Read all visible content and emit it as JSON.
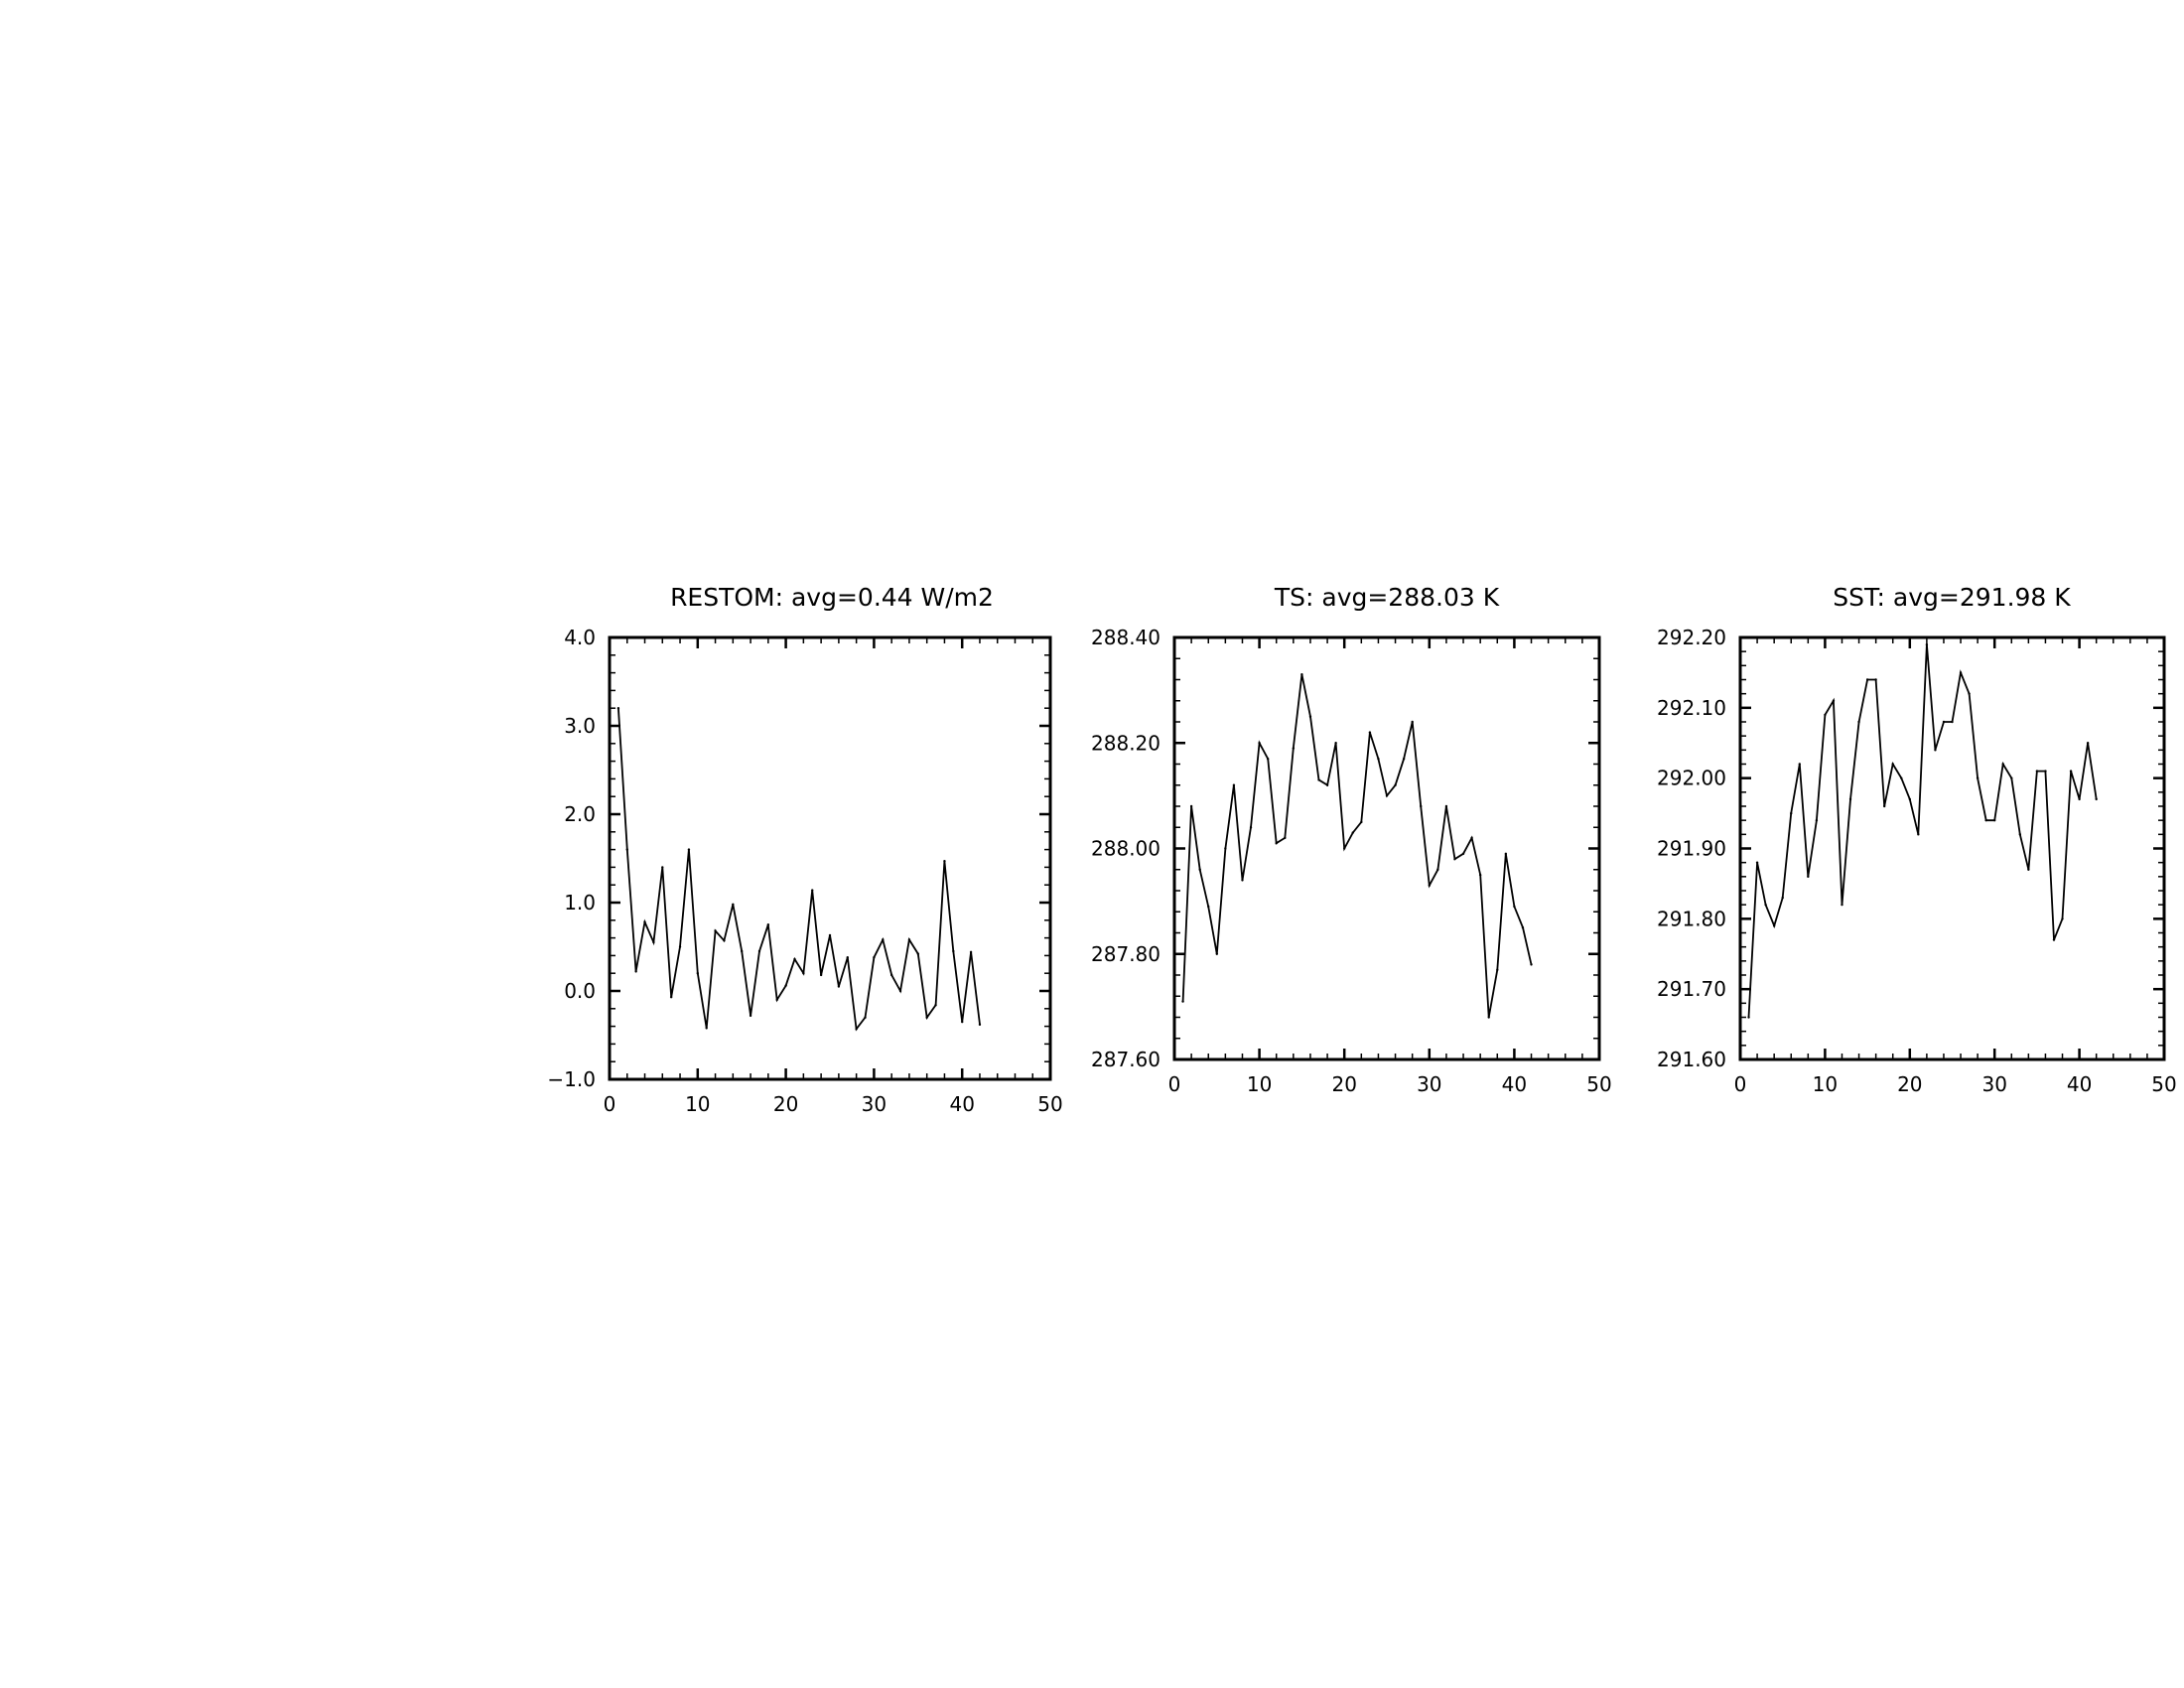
{
  "chart_data": [
    {
      "type": "line",
      "title": "RESTOM: avg=0.44 W/m2",
      "xlabel": "",
      "ylabel": "",
      "xlim": [
        0,
        50
      ],
      "ylim": [
        -1.0,
        4.0
      ],
      "xticks": [
        0,
        10,
        20,
        30,
        40,
        50
      ],
      "xtick_labels": [
        "0",
        "10",
        "20",
        "30",
        "40",
        "50"
      ],
      "yticks": [
        -1.0,
        0.0,
        1.0,
        2.0,
        3.0,
        4.0
      ],
      "ytick_labels": [
        "−1.0",
        "0.0",
        "1.0",
        "2.0",
        "3.0",
        "4.0"
      ],
      "grid": false,
      "x": [
        1,
        2,
        3,
        4,
        5,
        6,
        7,
        8,
        9,
        10,
        11,
        12,
        13,
        14,
        15,
        16,
        17,
        18,
        19,
        20,
        21,
        22,
        23,
        24,
        25,
        26,
        27,
        28,
        29,
        30,
        31,
        32,
        33,
        34,
        35,
        36,
        37,
        38,
        39,
        40,
        41,
        42
      ],
      "series": [
        {
          "color": "#000000",
          "values": [
            3.2,
            1.6,
            0.22,
            0.78,
            0.55,
            1.4,
            -0.07,
            0.5,
            1.6,
            0.2,
            -0.42,
            0.68,
            0.57,
            0.98,
            0.45,
            -0.28,
            0.45,
            0.75,
            -0.1,
            0.06,
            0.36,
            0.2,
            1.14,
            0.18,
            0.63,
            0.05,
            0.38,
            -0.43,
            -0.3,
            0.38,
            0.58,
            0.18,
            0.0,
            0.58,
            0.42,
            -0.3,
            -0.16,
            1.47,
            0.45,
            -0.35,
            0.44,
            -0.38
          ]
        }
      ]
    },
    {
      "type": "line",
      "title": "TS: avg=288.03 K",
      "xlabel": "",
      "ylabel": "",
      "xlim": [
        0,
        50
      ],
      "ylim": [
        287.6,
        288.4
      ],
      "xticks": [
        0,
        10,
        20,
        30,
        40,
        50
      ],
      "xtick_labels": [
        "0",
        "10",
        "20",
        "30",
        "40",
        "50"
      ],
      "yticks": [
        287.6,
        287.8,
        288.0,
        288.2,
        288.4
      ],
      "ytick_labels": [
        "287.60",
        "287.80",
        "288.00",
        "288.20",
        "288.40"
      ],
      "grid": false,
      "x": [
        1,
        2,
        3,
        4,
        5,
        6,
        7,
        8,
        9,
        10,
        11,
        12,
        13,
        14,
        15,
        16,
        17,
        18,
        19,
        20,
        21,
        22,
        23,
        24,
        25,
        26,
        27,
        28,
        29,
        30,
        31,
        32,
        33,
        34,
        35,
        36,
        37,
        38,
        39,
        40,
        41,
        42
      ],
      "series": [
        {
          "color": "#000000",
          "values": [
            287.71,
            288.08,
            287.96,
            287.89,
            287.8,
            288.0,
            288.12,
            287.94,
            288.04,
            288.2,
            288.17,
            288.01,
            288.02,
            288.19,
            288.33,
            288.25,
            288.13,
            288.12,
            288.2,
            288.0,
            288.03,
            288.05,
            288.22,
            288.17,
            288.1,
            288.12,
            288.17,
            288.24,
            288.08,
            287.93,
            287.96,
            288.08,
            287.98,
            287.99,
            288.02,
            287.95,
            287.68,
            287.77,
            287.99,
            287.89,
            287.85,
            287.78
          ]
        }
      ]
    },
    {
      "type": "line",
      "title": "SST: avg=291.98 K",
      "xlabel": "",
      "ylabel": "",
      "xlim": [
        0,
        50
      ],
      "ylim": [
        291.6,
        292.2
      ],
      "xticks": [
        0,
        10,
        20,
        30,
        40,
        50
      ],
      "xtick_labels": [
        "0",
        "10",
        "20",
        "30",
        "40",
        "50"
      ],
      "yticks": [
        291.6,
        291.7,
        291.8,
        291.9,
        292.0,
        292.1,
        292.2
      ],
      "ytick_labels": [
        "291.60",
        "291.70",
        "291.80",
        "291.90",
        "292.00",
        "292.10",
        "292.20"
      ],
      "grid": false,
      "x": [
        1,
        2,
        3,
        4,
        5,
        6,
        7,
        8,
        9,
        10,
        11,
        12,
        13,
        14,
        15,
        16,
        17,
        18,
        19,
        20,
        21,
        22,
        23,
        24,
        25,
        26,
        27,
        28,
        29,
        30,
        31,
        32,
        33,
        34,
        35,
        36,
        37,
        38,
        39,
        40,
        41,
        42
      ],
      "series": [
        {
          "color": "#000000",
          "values": [
            291.66,
            291.88,
            291.82,
            291.79,
            291.83,
            291.95,
            292.02,
            291.86,
            291.94,
            292.09,
            292.11,
            291.82,
            291.97,
            292.08,
            292.14,
            292.14,
            291.96,
            292.02,
            292.0,
            291.97,
            291.92,
            292.19,
            292.04,
            292.08,
            292.08,
            292.15,
            292.12,
            292.0,
            291.94,
            291.94,
            292.02,
            292.0,
            291.92,
            291.87,
            292.01,
            292.01,
            291.77,
            291.8,
            292.01,
            291.97,
            292.05,
            291.97
          ]
        }
      ]
    }
  ]
}
